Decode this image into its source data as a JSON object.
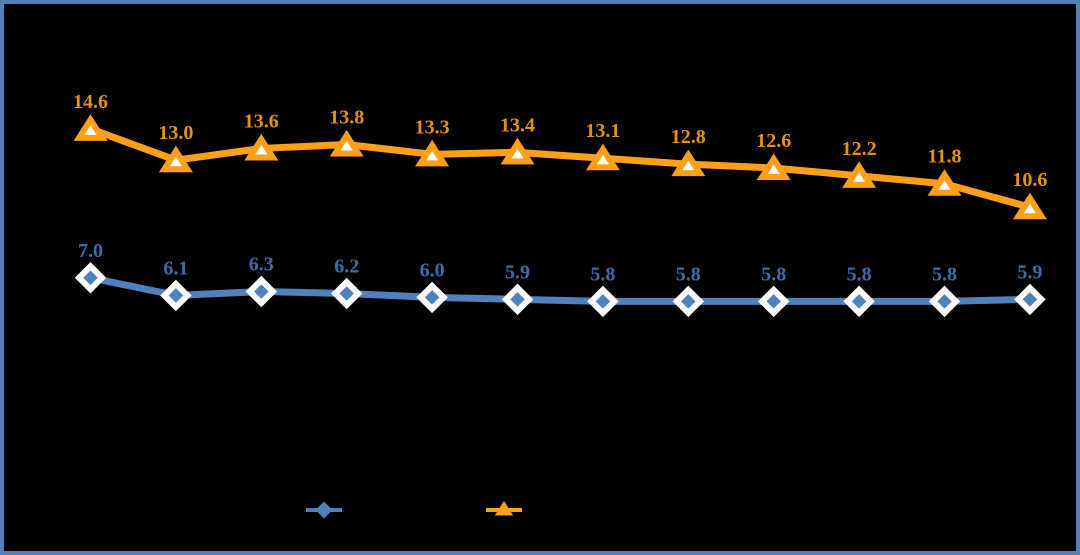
{
  "chart_data": {
    "type": "line",
    "title": "",
    "xlabel": "",
    "ylabel": "",
    "grid": false,
    "axes_visible": false,
    "background_color": "#000000",
    "frame_border_color": "#4E80BC",
    "x_count": 12,
    "series": [
      {
        "name": "orange-triangle-series",
        "marker": "triangle",
        "line_color": "#FFA018",
        "marker_fill": "#FFFFFF",
        "marker_stroke": "#FFA018",
        "label_color": "#E8920B",
        "values": [
          14.6,
          13.0,
          13.6,
          13.8,
          13.3,
          13.4,
          13.1,
          12.8,
          12.6,
          12.2,
          11.8,
          10.6
        ]
      },
      {
        "name": "blue-diamond-series",
        "marker": "diamond",
        "line_color": "#4E81BD",
        "marker_fill": "#4E81BD",
        "marker_stroke": "#FFFFFF",
        "label_color": "#3B6DAD",
        "values": [
          7.0,
          6.1,
          6.3,
          6.2,
          6.0,
          5.9,
          5.8,
          5.8,
          5.8,
          5.8,
          5.8,
          5.9
        ]
      }
    ],
    "legend": {
      "position": "bottom",
      "entries": [
        {
          "marker": "diamond",
          "color": "#4E81BD",
          "label": ""
        },
        {
          "marker": "triangle",
          "color": "#FFA018",
          "label": ""
        }
      ]
    }
  }
}
